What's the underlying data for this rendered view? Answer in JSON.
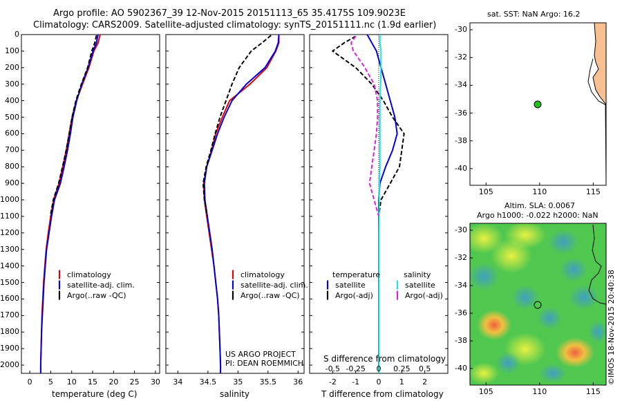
{
  "header": {
    "line1": "Argo profile: AO 5902367_39 12-Nov-2015 20151113_65 35.4175S 109.9023E",
    "line2": "Climatology: CARS2009. Satellite-adjusted climatology: synTS_20151111.nc (1.9d earlier)"
  },
  "depth_ticks": [
    "0",
    "100",
    "200",
    "300",
    "400",
    "500",
    "600",
    "700",
    "800",
    "900",
    "1000",
    "1100",
    "1200",
    "1300",
    "1400",
    "1500",
    "1600",
    "1700",
    "1800",
    "1900",
    "2000"
  ],
  "colors": {
    "red": "#e00000",
    "blue": "#0000e0",
    "black": "#000000",
    "cyan": "#20e0e0",
    "magenta": "#e020e0",
    "land": "#f8c090",
    "dot": "#20c020"
  },
  "chart_data": [
    {
      "type": "line",
      "id": "temperature",
      "xlabel": "temperature (deg C)",
      "xticks": [
        "0",
        "5",
        "10",
        "15",
        "20",
        "25",
        "30"
      ],
      "xlim": [
        -2,
        31
      ],
      "ylim": [
        0,
        2050
      ],
      "legend": [
        "climatology",
        "satellite-adj. clim.",
        "Argo(..raw -QC)"
      ],
      "series": [
        {
          "name": "climatology",
          "color": "red",
          "x": [
            16.8,
            16.3,
            15.3,
            14.1,
            12.6,
            11.1,
            10.1,
            9.4,
            8.7,
            7.9,
            7.0,
            5.7,
            5.0,
            4.4,
            3.9,
            3.6,
            3.3,
            3.1,
            2.9,
            2.8,
            2.7,
            2.6,
            2.6
          ],
          "y": [
            0,
            50,
            100,
            200,
            300,
            400,
            500,
            600,
            700,
            800,
            900,
            1000,
            1100,
            1200,
            1300,
            1400,
            1500,
            1600,
            1700,
            1800,
            1900,
            2000,
            2050
          ]
        },
        {
          "name": "satellite-adj. clim.",
          "color": "blue",
          "x": [
            16.3,
            15.9,
            15.1,
            13.9,
            12.4,
            11.2,
            10.3,
            9.7,
            9.0,
            8.2,
            7.3,
            5.9,
            5.2,
            4.6,
            4.0,
            3.7,
            3.4,
            3.2,
            3.0,
            2.8,
            2.7,
            2.6,
            2.6
          ],
          "y": [
            0,
            50,
            100,
            200,
            300,
            400,
            500,
            600,
            700,
            800,
            900,
            1000,
            1100,
            1200,
            1300,
            1400,
            1500,
            1600,
            1700,
            1800,
            1900,
            2000,
            2050
          ]
        },
        {
          "name": "Argo(..raw -QC)",
          "color": "black",
          "x": [
            15.9,
            15.5,
            14.8,
            13.8,
            12.3,
            11.0,
            10.1,
            9.4,
            8.7,
            7.8,
            6.9,
            5.6,
            4.9
          ],
          "y": [
            5,
            50,
            100,
            200,
            300,
            400,
            500,
            600,
            700,
            800,
            900,
            1000,
            1100
          ]
        }
      ]
    },
    {
      "type": "line",
      "id": "salinity",
      "xlabel": "salinity",
      "xticks": [
        "34",
        "34.5",
        "35",
        "35.5",
        "36"
      ],
      "xlim": [
        33.8,
        36.1
      ],
      "ylim": [
        0,
        2050
      ],
      "legend": [
        "climatology",
        "satellite-adj. clim.",
        "Argo(..raw -QC)"
      ],
      "annotations": [
        "US ARGO PROJECT",
        "PI: DEAN ROEMMICH"
      ],
      "series": [
        {
          "name": "climatology",
          "color": "red",
          "x": [
            35.68,
            35.68,
            35.63,
            35.48,
            35.2,
            34.86,
            34.74,
            34.63,
            34.56,
            34.48,
            34.43,
            34.44,
            34.48,
            34.52,
            34.56,
            34.6,
            34.63,
            34.66,
            34.68,
            34.69,
            34.7,
            34.71,
            34.71
          ],
          "y": [
            0,
            50,
            100,
            200,
            300,
            400,
            500,
            600,
            700,
            800,
            900,
            1000,
            1100,
            1200,
            1300,
            1400,
            1500,
            1600,
            1700,
            1800,
            1900,
            2000,
            2050
          ]
        },
        {
          "name": "satellite-adj. clim.",
          "color": "blue",
          "x": [
            35.68,
            35.67,
            35.62,
            35.45,
            35.14,
            34.9,
            34.77,
            34.66,
            34.57,
            34.48,
            34.44,
            34.45,
            34.49,
            34.53,
            34.57,
            34.6,
            34.63,
            34.66,
            34.68,
            34.69,
            34.7,
            34.71,
            34.71
          ],
          "y": [
            0,
            50,
            100,
            200,
            300,
            400,
            500,
            600,
            700,
            800,
            900,
            1000,
            1100,
            1200,
            1300,
            1400,
            1500,
            1600,
            1700,
            1800,
            1900,
            2000,
            2050
          ]
        },
        {
          "name": "Argo(..raw -QC)",
          "color": "black",
          "x": [
            35.55,
            35.4,
            35.22,
            35.02,
            34.9,
            34.8,
            34.7,
            34.62,
            34.55,
            34.47,
            34.42,
            34.44,
            34.49
          ],
          "y": [
            5,
            50,
            100,
            200,
            300,
            400,
            500,
            600,
            700,
            800,
            900,
            1000,
            1100
          ]
        }
      ]
    },
    {
      "type": "line",
      "id": "difference",
      "xlabel": "T difference from climatology",
      "xlabel_top": "S difference from climatology",
      "xticks": [
        "-2",
        "-1",
        "0",
        "1",
        "2"
      ],
      "xticks_top": [
        "-0.5",
        "-0.25",
        "0",
        "0.25",
        "0.5"
      ],
      "xlim": [
        -3,
        3
      ],
      "ylim": [
        0,
        2050
      ],
      "legend_headers": [
        "temperature",
        "salinity"
      ],
      "legend": [
        "satellite",
        "Argo(-adj)",
        "satellite",
        "Argo(-adj)"
      ],
      "series": [
        {
          "name": "satellite",
          "color": "blue",
          "x": [
            -0.5,
            -0.3,
            -0.1,
            0.1,
            0.3,
            0.5,
            0.7,
            0.8,
            0.6,
            0.3,
            0.05,
            0,
            0,
            0,
            0,
            0,
            0,
            0,
            0,
            0
          ],
          "y": [
            0,
            50,
            100,
            200,
            300,
            400,
            500,
            600,
            700,
            800,
            900,
            1000,
            1200,
            1400,
            1600,
            1800,
            1900,
            2000,
            2050,
            2050
          ]
        },
        {
          "name": "Argo(-adj)",
          "color": "black",
          "x": [
            -1.0,
            -1.5,
            -2.0,
            -1.0,
            -0.3,
            0.2,
            0.6,
            1.1,
            0.9,
            0.5,
            0.1,
            0
          ],
          "y": [
            10,
            50,
            100,
            200,
            300,
            400,
            500,
            600,
            800,
            900,
            1000,
            1100
          ]
        },
        {
          "name": "satellite",
          "color": "cyan",
          "x": [
            0.05,
            0.05,
            0.1,
            0.1,
            0.08,
            0.05,
            0.05,
            0.05,
            0.05,
            0.05,
            0.03,
            0.02,
            0.01,
            0.01,
            0.01,
            0.01,
            0.01
          ],
          "y": [
            0,
            50,
            100,
            200,
            300,
            400,
            500,
            600,
            700,
            800,
            900,
            1000,
            1200,
            1400,
            1600,
            1800,
            2050
          ]
        },
        {
          "name": "Argo(-adj)",
          "color": "magenta",
          "x": [
            -1.0,
            -1.2,
            -1.1,
            -0.6,
            -0.2,
            -0.05,
            -0.05,
            -0.1,
            -0.3,
            -0.4,
            -0.2,
            0
          ],
          "y": [
            10,
            50,
            100,
            200,
            300,
            400,
            500,
            600,
            800,
            900,
            1000,
            1100
          ]
        }
      ]
    }
  ],
  "map_sst": {
    "title": "sat. SST: NaN Argo: 16.2",
    "xticks": [
      "105",
      "110",
      "115"
    ],
    "yticks": [
      "-30",
      "-32",
      "-34",
      "-36",
      "-38",
      "-40"
    ]
  },
  "map_sla": {
    "title_line1": "Altim. SLA: 0.0067",
    "title_line2": "Argo h1000: -0.022 h2000: NaN",
    "xticks": [
      "105",
      "110",
      "115"
    ],
    "yticks": [
      "-30",
      "-32",
      "-34",
      "-36",
      "-38",
      "-40"
    ]
  },
  "footer_stamp": "©IMOS 18-Nov-2015 20:40:38"
}
